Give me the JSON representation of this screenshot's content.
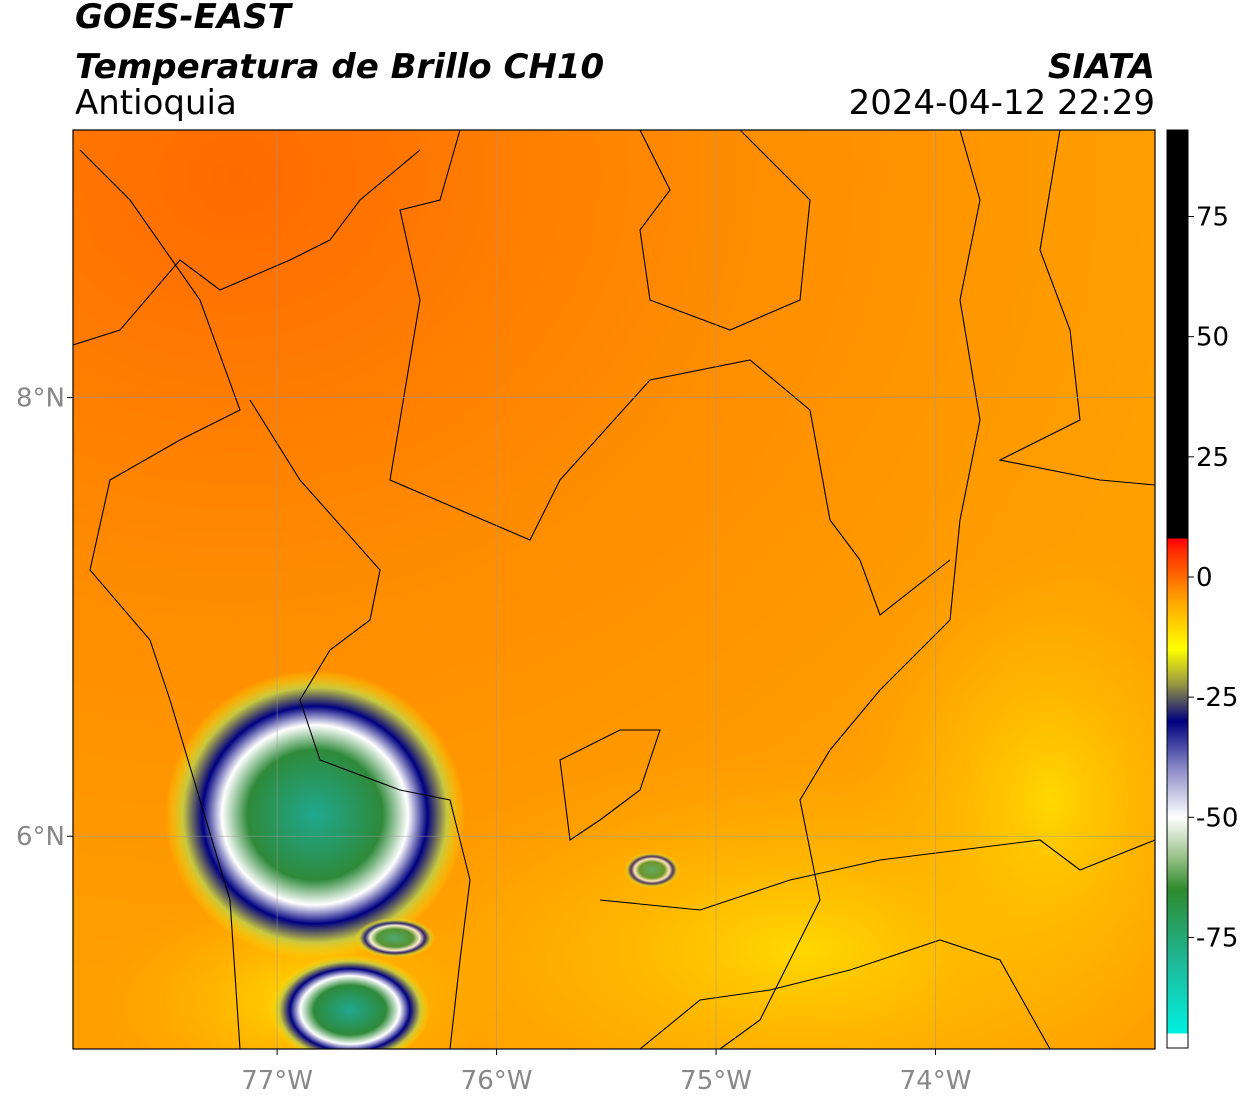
{
  "header": {
    "title": "GOES-EAST",
    "subtitle": "Temperatura de Brillo CH10",
    "region": "Antioquia",
    "source": "SIATA",
    "datetime": "2024-04-12 22:29"
  },
  "map": {
    "xlim": [
      -77.93,
      -73.0
    ],
    "ylim": [
      5.03,
      9.22
    ],
    "xticks": [
      {
        "value": -77,
        "label": "77°W"
      },
      {
        "value": -76,
        "label": "76°W"
      },
      {
        "value": -75,
        "label": "75°W"
      },
      {
        "value": -74,
        "label": "74°W"
      }
    ],
    "yticks": [
      {
        "value": 8,
        "label": "8°N"
      },
      {
        "value": 6,
        "label": "6°N"
      }
    ],
    "grid": true
  },
  "colorbar": {
    "lim": [
      -98,
      93
    ],
    "ticks": [
      75,
      50,
      25,
      0,
      -25,
      -50,
      -75
    ],
    "colorscale": [
      {
        "value": -98,
        "color": "#ffffff"
      },
      {
        "value": -95,
        "color": "#ffffff"
      },
      {
        "value": -95,
        "color": "#00f0e0"
      },
      {
        "value": -80,
        "color": "#1fb898"
      },
      {
        "value": -65,
        "color": "#2e8a2e"
      },
      {
        "value": -58,
        "color": "#9cc48c"
      },
      {
        "value": -50,
        "color": "#ffffff"
      },
      {
        "value": -40,
        "color": "#8c8cc8"
      },
      {
        "value": -30,
        "color": "#000080"
      },
      {
        "value": -22,
        "color": "#9c9c40"
      },
      {
        "value": -15,
        "color": "#ffff00"
      },
      {
        "value": -5,
        "color": "#ffa500"
      },
      {
        "value": 5,
        "color": "#ff3000"
      },
      {
        "value": 8,
        "color": "#ff0000"
      },
      {
        "value": 8,
        "color": "#000000"
      },
      {
        "value": 93,
        "color": "#000000"
      }
    ]
  }
}
